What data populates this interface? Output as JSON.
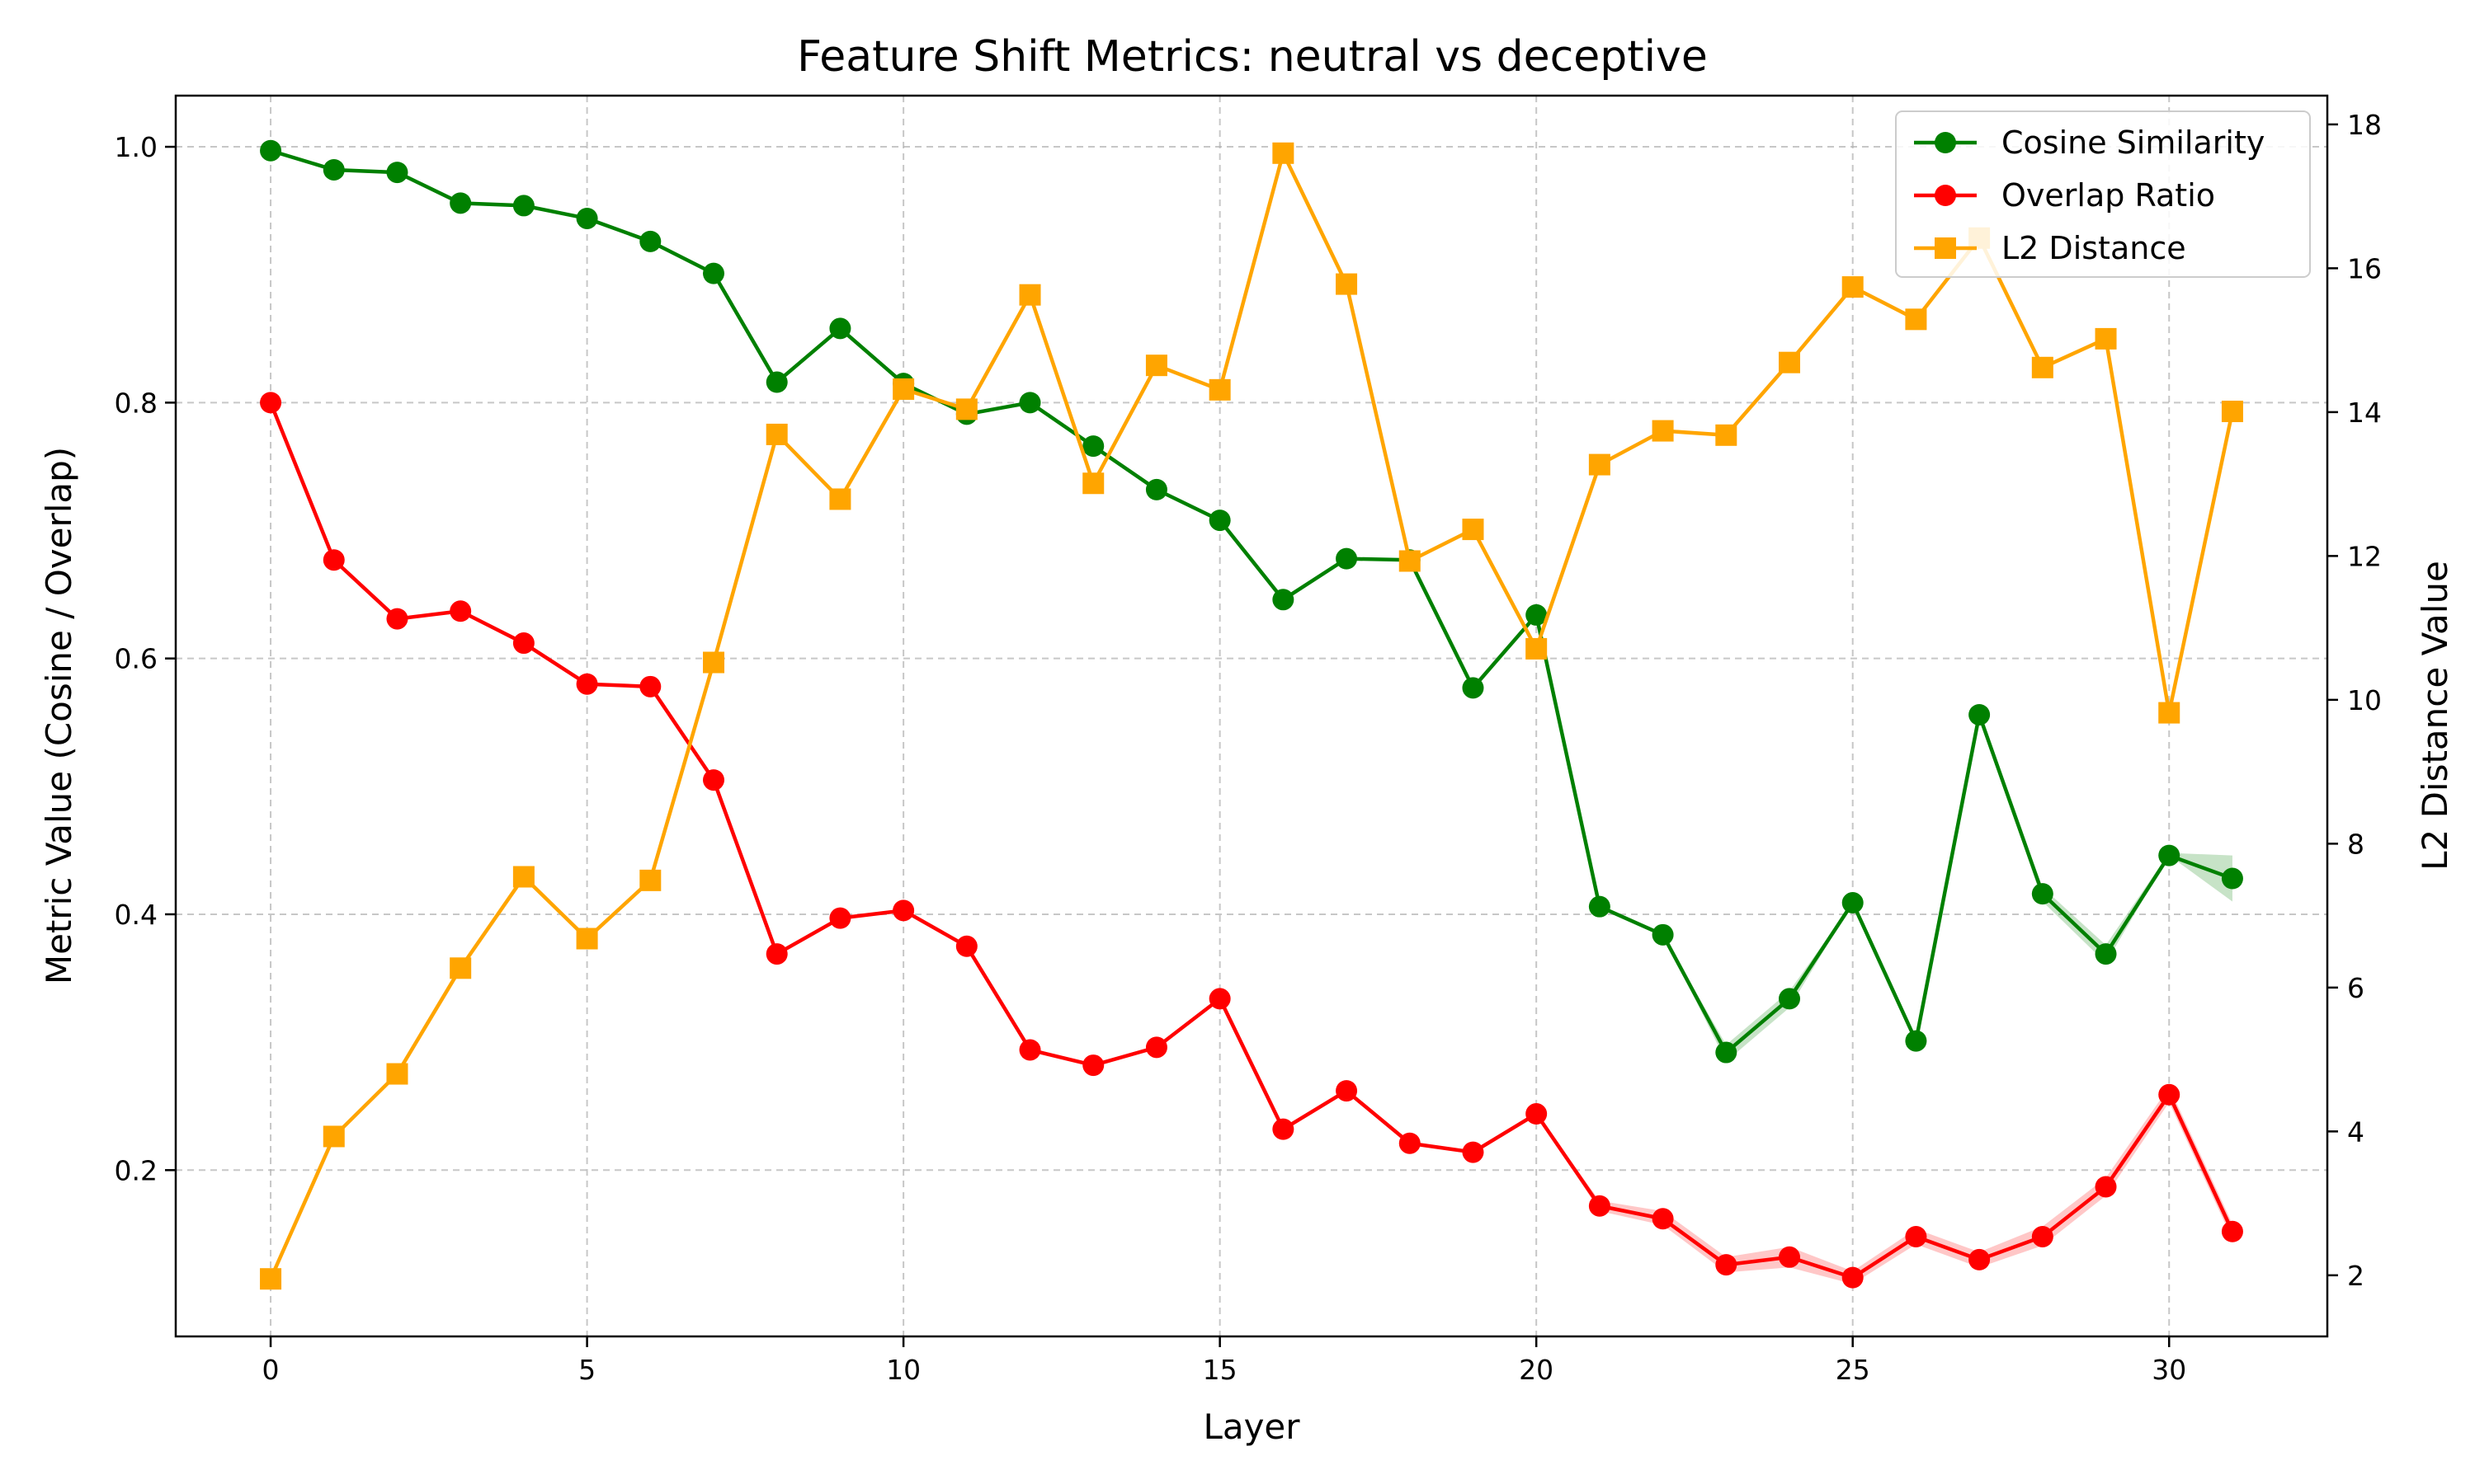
{
  "chart_data": {
    "type": "line",
    "title": "Feature Shift Metrics: neutral vs deceptive",
    "xlabel": "Layer",
    "ylabel_left": "Metric Value (Cosine / Overlap)",
    "ylabel_right": "L2 Distance Value",
    "xlim": [
      -1.5,
      32.5
    ],
    "ylim_left": [
      0.07,
      1.04
    ],
    "ylim_right": [
      1.15,
      18.4
    ],
    "x_ticks": [
      0,
      5,
      10,
      15,
      20,
      25,
      30
    ],
    "y_ticks_left": [
      0.2,
      0.4,
      0.6,
      0.8,
      1.0
    ],
    "y_ticks_right": [
      2,
      4,
      6,
      8,
      10,
      12,
      14,
      16,
      18
    ],
    "grid": true,
    "legend_position": "top-right",
    "x": [
      0,
      1,
      2,
      3,
      4,
      5,
      6,
      7,
      8,
      9,
      10,
      11,
      12,
      13,
      14,
      15,
      16,
      17,
      18,
      19,
      20,
      21,
      22,
      23,
      24,
      25,
      26,
      27,
      28,
      29,
      30,
      31
    ],
    "series": [
      {
        "name": "Cosine Similarity",
        "axis": "left",
        "color": "#008000",
        "marker": "circle",
        "values": [
          0.997,
          0.982,
          0.98,
          0.956,
          0.954,
          0.944,
          0.926,
          0.901,
          0.816,
          0.858,
          0.815,
          0.791,
          0.8,
          0.766,
          0.732,
          0.708,
          0.646,
          0.678,
          0.677,
          0.577,
          0.634,
          0.406,
          0.384,
          0.292,
          0.334,
          0.409,
          0.301,
          0.556,
          0.416,
          0.369,
          0.446,
          0.428
        ],
        "band_lower": [
          0.997,
          0.982,
          0.98,
          0.956,
          0.954,
          0.944,
          0.926,
          0.901,
          0.816,
          0.858,
          0.815,
          0.791,
          0.8,
          0.766,
          0.732,
          0.708,
          0.646,
          0.678,
          0.677,
          0.577,
          0.634,
          0.406,
          0.384,
          0.285,
          0.327,
          0.409,
          0.301,
          0.556,
          0.41,
          0.362,
          0.446,
          0.41
        ],
        "band_upper": [
          0.997,
          0.982,
          0.98,
          0.956,
          0.954,
          0.944,
          0.926,
          0.901,
          0.816,
          0.858,
          0.815,
          0.791,
          0.8,
          0.766,
          0.732,
          0.708,
          0.646,
          0.678,
          0.677,
          0.577,
          0.634,
          0.406,
          0.384,
          0.298,
          0.34,
          0.409,
          0.301,
          0.556,
          0.421,
          0.376,
          0.448,
          0.446
        ]
      },
      {
        "name": "Overlap Ratio",
        "axis": "left",
        "color": "#ff0000",
        "marker": "circle",
        "values": [
          0.8,
          0.677,
          0.631,
          0.637,
          0.612,
          0.58,
          0.578,
          0.505,
          0.369,
          0.397,
          0.403,
          0.375,
          0.294,
          0.282,
          0.296,
          0.334,
          0.232,
          0.262,
          0.221,
          0.214,
          0.244,
          0.172,
          0.162,
          0.126,
          0.132,
          0.116,
          0.148,
          0.13,
          0.148,
          0.187,
          0.259,
          0.152
        ],
        "band_lower": [
          0.8,
          0.677,
          0.631,
          0.637,
          0.612,
          0.58,
          0.578,
          0.505,
          0.369,
          0.397,
          0.403,
          0.375,
          0.294,
          0.282,
          0.296,
          0.334,
          0.232,
          0.262,
          0.221,
          0.214,
          0.244,
          0.168,
          0.157,
          0.12,
          0.124,
          0.111,
          0.142,
          0.124,
          0.141,
          0.18,
          0.253,
          0.146
        ],
        "band_upper": [
          0.8,
          0.677,
          0.631,
          0.637,
          0.612,
          0.58,
          0.578,
          0.505,
          0.369,
          0.397,
          0.403,
          0.375,
          0.294,
          0.282,
          0.296,
          0.334,
          0.232,
          0.262,
          0.221,
          0.214,
          0.244,
          0.176,
          0.168,
          0.132,
          0.14,
          0.121,
          0.154,
          0.136,
          0.156,
          0.194,
          0.265,
          0.158
        ]
      },
      {
        "name": "L2 Distance",
        "axis": "right",
        "color": "#ffa500",
        "marker": "square",
        "values": [
          1.95,
          3.93,
          4.8,
          6.27,
          7.54,
          6.68,
          7.49,
          10.52,
          13.69,
          12.79,
          14.32,
          14.04,
          15.63,
          13.01,
          14.65,
          14.31,
          17.6,
          15.78,
          11.93,
          12.37,
          10.71,
          13.27,
          13.74,
          13.68,
          14.69,
          15.74,
          15.29,
          16.42,
          14.62,
          15.02,
          9.82,
          14.01
        ]
      }
    ]
  }
}
